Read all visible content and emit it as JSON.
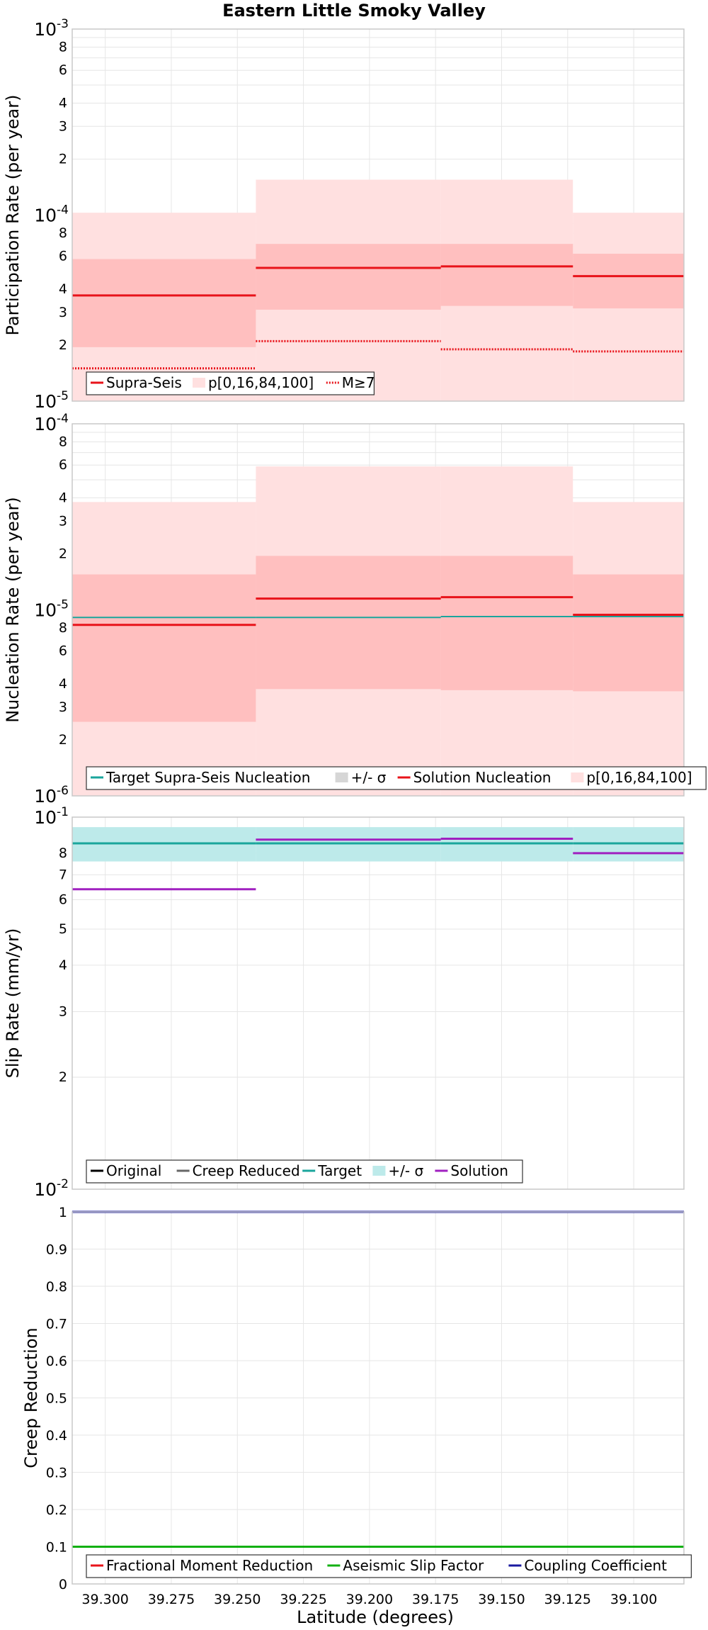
{
  "figure": {
    "title": "Eastern Little Smoky Valley",
    "xlabel": "Latitude (degrees)"
  },
  "colors": {
    "red": "#e8131a",
    "pink_light": "#ffe0e0",
    "pink_dark": "#ffbfbf",
    "teal": "#1aa59c",
    "teal_light": "#bdeaea",
    "gray_band": "#c3c3c3",
    "purple": "#a020c0",
    "green": "#12b012",
    "navy": "#1a1aa0"
  },
  "chart_data": [
    {
      "type": "line",
      "ylabel": "Participation Rate (per year)",
      "yscale": "log",
      "ylim": [
        1e-05,
        0.001
      ],
      "xlim": [
        39.3125,
        39.081
      ],
      "x_ticks": [
        39.3,
        39.275,
        39.25,
        39.225,
        39.2,
        39.175,
        39.15,
        39.125,
        39.1
      ],
      "segments": [
        [
          39.3125,
          39.243
        ],
        [
          39.243,
          39.173
        ],
        [
          39.173,
          39.123
        ],
        [
          39.123,
          39.081
        ]
      ],
      "series": [
        {
          "name": "Supra-Seis",
          "style": "solid",
          "color": "red",
          "values": [
            3.7e-05,
            5.2e-05,
            5.3e-05,
            4.7e-05
          ]
        },
        {
          "name": "p[0,16,84,100]",
          "style": "band",
          "outer": [
            [
              1e-05,
              0.000103
            ],
            [
              1e-05,
              0.000155
            ],
            [
              1e-05,
              0.000155
            ],
            [
              1e-05,
              0.000103
            ]
          ],
          "inner": [
            [
              1.95e-05,
              5.8e-05
            ],
            [
              3.1e-05,
              7e-05
            ],
            [
              3.25e-05,
              7e-05
            ],
            [
              3.15e-05,
              6.2e-05
            ]
          ]
        },
        {
          "name": "M≥7",
          "style": "dotted",
          "color": "red",
          "values": [
            1.5e-05,
            2.1e-05,
            1.9e-05,
            1.85e-05
          ]
        }
      ]
    },
    {
      "type": "line",
      "ylabel": "Nucleation Rate (per year)",
      "yscale": "log",
      "ylim": [
        1e-06,
        0.0001
      ],
      "segments": [
        [
          39.3125,
          39.243
        ],
        [
          39.243,
          39.173
        ],
        [
          39.173,
          39.123
        ],
        [
          39.123,
          39.081
        ]
      ],
      "series": [
        {
          "name": "Target Supra-Seis Nucleation",
          "style": "solid",
          "color": "teal",
          "values": [
            9.1e-06,
            9.1e-06,
            9.2e-06,
            9.2e-06
          ]
        },
        {
          "name": "+/- σ",
          "style": "band",
          "band": [
            [
              7.6e-06,
              1.09e-05
            ],
            [
              7.6e-06,
              1.09e-05
            ],
            [
              7.6e-06,
              1.09e-05
            ],
            [
              7.6e-06,
              1.09e-05
            ]
          ]
        },
        {
          "name": "Solution Nucleation",
          "style": "solid",
          "color": "red",
          "values": [
            8.3e-06,
            1.15e-05,
            1.17e-05,
            9.4e-06
          ]
        },
        {
          "name": "p[0,16,84,100]",
          "style": "band",
          "outer": [
            [
              1e-06,
              3.8e-05
            ],
            [
              1e-06,
              5.9e-05
            ],
            [
              1e-06,
              5.9e-05
            ],
            [
              1e-06,
              3.8e-05
            ]
          ],
          "inner": [
            [
              2.5e-06,
              1.55e-05
            ],
            [
              3.75e-06,
              1.95e-05
            ],
            [
              3.7e-06,
              1.95e-05
            ],
            [
              3.65e-06,
              1.55e-05
            ]
          ]
        }
      ]
    },
    {
      "type": "line",
      "ylabel": "Slip Rate (mm/yr)",
      "yscale": "log",
      "ylim": [
        0.01,
        0.1
      ],
      "segments": [
        [
          39.3125,
          39.243
        ],
        [
          39.243,
          39.173
        ],
        [
          39.173,
          39.123
        ],
        [
          39.123,
          39.081
        ]
      ],
      "series": [
        {
          "name": "Original",
          "style": "solid",
          "color": "black",
          "values": []
        },
        {
          "name": "Creep Reduced",
          "style": "solid",
          "color": "gray",
          "values": []
        },
        {
          "name": "Target",
          "style": "solid",
          "color": "teal",
          "values": [
            0.085,
            0.085,
            0.085,
            0.085
          ]
        },
        {
          "name": "+/- σ",
          "style": "band",
          "band": [
            [
              0.076,
              0.094
            ],
            [
              0.076,
              0.094
            ],
            [
              0.076,
              0.094
            ],
            [
              0.076,
              0.094
            ]
          ]
        },
        {
          "name": "Solution",
          "style": "solid",
          "color": "purple",
          "values": [
            0.064,
            0.087,
            0.0875,
            0.08
          ]
        }
      ]
    },
    {
      "type": "line",
      "ylabel": "Creep Reduction",
      "yscale": "linear",
      "ylim": [
        0,
        1
      ],
      "series": [
        {
          "name": "Fractional Moment Reduction",
          "style": "solid",
          "color": "red",
          "values": []
        },
        {
          "name": "Aseismic Slip Factor",
          "style": "solid",
          "color": "green",
          "values": [
            0.1
          ]
        },
        {
          "name": "Coupling Coefficient",
          "style": "solid",
          "color": "navy",
          "values": [
            1.0
          ]
        }
      ]
    }
  ]
}
